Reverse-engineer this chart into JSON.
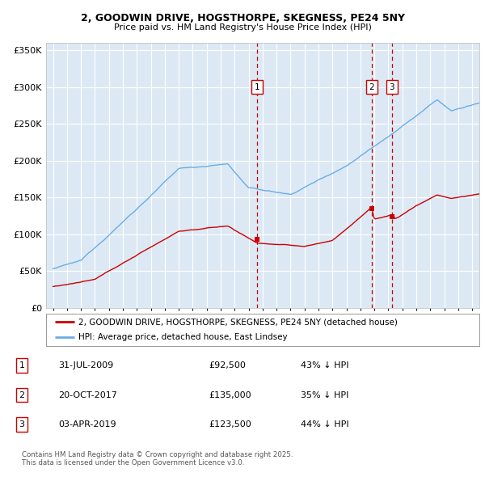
{
  "title1": "2, GOODWIN DRIVE, HOGSTHORPE, SKEGNESS, PE24 5NY",
  "title2": "Price paid vs. HM Land Registry's House Price Index (HPI)",
  "bg_color": "#dce9f5",
  "grid_color": "#ffffff",
  "hpi_color": "#6aade4",
  "price_color": "#cc0000",
  "vline_color": "#cc0000",
  "legend_entries": [
    "2, GOODWIN DRIVE, HOGSTHORPE, SKEGNESS, PE24 5NY (detached house)",
    "HPI: Average price, detached house, East Lindsey"
  ],
  "table": [
    {
      "num": "1",
      "date": "31-JUL-2009",
      "price": "£92,500",
      "pct": "43% ↓ HPI"
    },
    {
      "num": "2",
      "date": "20-OCT-2017",
      "price": "£135,000",
      "pct": "35% ↓ HPI"
    },
    {
      "num": "3",
      "date": "03-APR-2019",
      "price": "£123,500",
      "pct": "44% ↓ HPI"
    }
  ],
  "footer": "Contains HM Land Registry data © Crown copyright and database right 2025.\nThis data is licensed under the Open Government Licence v3.0.",
  "sale_dates": [
    2009.58,
    2017.8,
    2019.25
  ],
  "sale_prices": [
    92500,
    135000,
    123500
  ],
  "sale_labels": [
    "1",
    "2",
    "3"
  ],
  "ylim": [
    0,
    360000
  ],
  "xlim": [
    1994.5,
    2025.5
  ]
}
